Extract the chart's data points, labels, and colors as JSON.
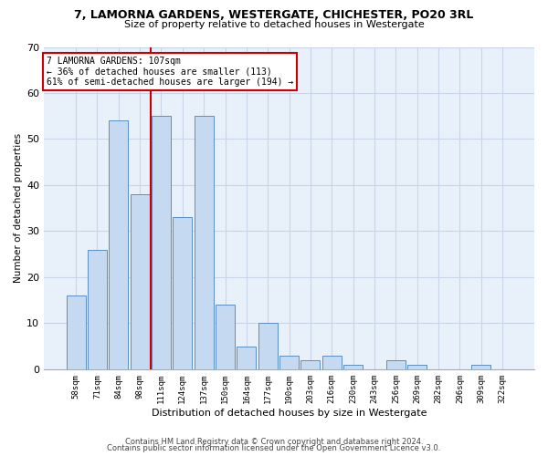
{
  "title": "7, LAMORNA GARDENS, WESTERGATE, CHICHESTER, PO20 3RL",
  "subtitle": "Size of property relative to detached houses in Westergate",
  "xlabel": "Distribution of detached houses by size in Westergate",
  "ylabel": "Number of detached properties",
  "categories": [
    "58sqm",
    "71sqm",
    "84sqm",
    "98sqm",
    "111sqm",
    "124sqm",
    "137sqm",
    "150sqm",
    "164sqm",
    "177sqm",
    "190sqm",
    "203sqm",
    "216sqm",
    "230sqm",
    "243sqm",
    "256sqm",
    "269sqm",
    "282sqm",
    "296sqm",
    "309sqm",
    "322sqm"
  ],
  "values": [
    16,
    26,
    54,
    38,
    55,
    33,
    55,
    14,
    5,
    10,
    3,
    2,
    3,
    1,
    0,
    2,
    1,
    0,
    0,
    1,
    0
  ],
  "bar_color": "#c5d9f0",
  "bar_edge_color": "#5a8fc3",
  "grid_color": "#c8d4e8",
  "bg_color": "#e8f0fa",
  "vline_color": "#cc0000",
  "annotation_text": "7 LAMORNA GARDENS: 107sqm\n← 36% of detached houses are smaller (113)\n61% of semi-detached houses are larger (194) →",
  "annotation_box_color": "#ffffff",
  "annotation_box_edge": "#cc0000",
  "ylim": [
    0,
    70
  ],
  "yticks": [
    0,
    10,
    20,
    30,
    40,
    50,
    60,
    70
  ],
  "title_fontsize": 9,
  "subtitle_fontsize": 8,
  "footer1": "Contains HM Land Registry data © Crown copyright and database right 2024.",
  "footer2": "Contains public sector information licensed under the Open Government Licence v3.0.",
  "footer_fontsize": 6
}
